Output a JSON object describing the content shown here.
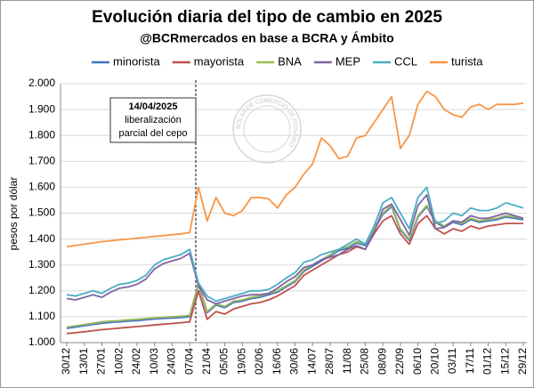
{
  "chart_data": {
    "type": "line",
    "title": "Evolución diaria del tipo de cambio en 2025",
    "subtitle": "@BCRmercados en base a BCRA y Ámbito",
    "y_label": "pesos por dólar",
    "annotation": [
      "14/04/2025",
      "liberalización",
      "parcial del cepo"
    ],
    "watermark": "BOLSA DE COMERCIO DE ROSARIO",
    "categories": [
      "30/12",
      null,
      "13/01",
      null,
      "27/01",
      null,
      "10/02",
      null,
      "24/02",
      null,
      "10/03",
      null,
      "24/03",
      null,
      "07/04",
      null,
      "21/04",
      null,
      "05/05",
      null,
      "19/05",
      null,
      "02/06",
      null,
      "16/06",
      null,
      "30/06",
      null,
      "14/07",
      null,
      "28/07",
      null,
      "11/08",
      null,
      "25/08",
      null,
      "08/09",
      null,
      "22/09",
      null,
      "06/10",
      null,
      "20/10",
      null,
      "03/11",
      null,
      "17/11",
      null,
      "01/12",
      null,
      "15/12",
      null,
      "29/12"
    ],
    "series": [
      {
        "name": "minorista",
        "color": "#4472c4",
        "values": [
          1055,
          1060,
          1065,
          1070,
          1075,
          1078,
          1080,
          1083,
          1085,
          1088,
          1091,
          1093,
          1095,
          1097,
          1100,
          1225,
          1115,
          1145,
          1135,
          1155,
          1160,
          1170,
          1175,
          1185,
          1195,
          1215,
          1235,
          1275,
          1295,
          1315,
          1335,
          1355,
          1365,
          1385,
          1375,
          1435,
          1495,
          1525,
          1435,
          1395,
          1485,
          1525,
          1465,
          1445,
          1465,
          1455,
          1475,
          1465,
          1470,
          1475,
          1485,
          1480,
          1475
        ]
      },
      {
        "name": "mayorista",
        "color": "#c0504d",
        "values": [
          1035,
          1038,
          1042,
          1046,
          1050,
          1053,
          1056,
          1059,
          1062,
          1065,
          1068,
          1071,
          1074,
          1077,
          1080,
          1200,
          1090,
          1120,
          1110,
          1130,
          1140,
          1150,
          1155,
          1165,
          1180,
          1200,
          1220,
          1260,
          1280,
          1300,
          1320,
          1340,
          1350,
          1370,
          1360,
          1420,
          1470,
          1490,
          1420,
          1380,
          1460,
          1490,
          1440,
          1420,
          1440,
          1430,
          1450,
          1440,
          1450,
          1455,
          1460,
          1460,
          1460
        ]
      },
      {
        "name": "BNA",
        "color": "#9bbb59",
        "values": [
          1060,
          1065,
          1070,
          1075,
          1080,
          1083,
          1085,
          1088,
          1090,
          1093,
          1096,
          1098,
          1100,
          1102,
          1105,
          1230,
          1120,
          1150,
          1140,
          1160,
          1165,
          1175,
          1180,
          1190,
          1200,
          1220,
          1240,
          1280,
          1300,
          1320,
          1340,
          1360,
          1370,
          1390,
          1380,
          1440,
          1500,
          1530,
          1440,
          1400,
          1490,
          1530,
          1470,
          1450,
          1470,
          1460,
          1480,
          1470,
          1475,
          1480,
          1490,
          1485,
          1480
        ]
      },
      {
        "name": "MEP",
        "color": "#8064a2",
        "values": [
          1170,
          1165,
          1175,
          1185,
          1175,
          1195,
          1210,
          1215,
          1225,
          1245,
          1285,
          1305,
          1315,
          1325,
          1345,
          1220,
          1165,
          1150,
          1160,
          1170,
          1180,
          1185,
          1185,
          1190,
          1210,
          1235,
          1255,
          1290,
          1300,
          1320,
          1330,
          1340,
          1360,
          1375,
          1360,
          1425,
          1515,
          1535,
          1475,
          1415,
          1530,
          1570,
          1440,
          1445,
          1470,
          1465,
          1490,
          1480,
          1480,
          1490,
          1500,
          1490,
          1480
        ]
      },
      {
        "name": "CCL",
        "color": "#4bacc6",
        "values": [
          1185,
          1180,
          1190,
          1200,
          1190,
          1210,
          1225,
          1230,
          1240,
          1260,
          1300,
          1320,
          1330,
          1340,
          1360,
          1230,
          1180,
          1160,
          1170,
          1180,
          1190,
          1200,
          1200,
          1205,
          1225,
          1250,
          1270,
          1310,
          1320,
          1340,
          1350,
          1360,
          1380,
          1400,
          1380,
          1450,
          1540,
          1560,
          1500,
          1440,
          1560,
          1600,
          1460,
          1470,
          1500,
          1490,
          1520,
          1510,
          1510,
          1520,
          1540,
          1530,
          1520
        ]
      },
      {
        "name": "turista",
        "color": "#f79646",
        "values": [
          1370,
          1375,
          1380,
          1385,
          1390,
          1393,
          1397,
          1400,
          1403,
          1407,
          1410,
          1413,
          1417,
          1420,
          1425,
          1600,
          1470,
          1560,
          1500,
          1490,
          1510,
          1560,
          1560,
          1555,
          1520,
          1570,
          1600,
          1650,
          1690,
          1790,
          1760,
          1710,
          1720,
          1790,
          1800,
          1850,
          1900,
          1950,
          1750,
          1800,
          1920,
          1970,
          1950,
          1900,
          1880,
          1870,
          1910,
          1920,
          1900,
          1920,
          1920,
          1920,
          1925
        ]
      }
    ],
    "ylim": [
      1000,
      2000
    ],
    "yticks": [
      {
        "value": 1000,
        "label": "1.000"
      },
      {
        "value": 1100,
        "label": "1.100"
      },
      {
        "value": 1200,
        "label": "1.200"
      },
      {
        "value": 1300,
        "label": "1.300"
      },
      {
        "value": 1400,
        "label": "1.400"
      },
      {
        "value": 1500,
        "label": "1.500"
      },
      {
        "value": 1600,
        "label": "1.600"
      },
      {
        "value": 1700,
        "label": "1.700"
      },
      {
        "value": 1800,
        "label": "1.800"
      },
      {
        "value": 1900,
        "label": "1.900"
      },
      {
        "value": 2000,
        "label": "2.000"
      }
    ],
    "grid": true,
    "legend": "top"
  }
}
